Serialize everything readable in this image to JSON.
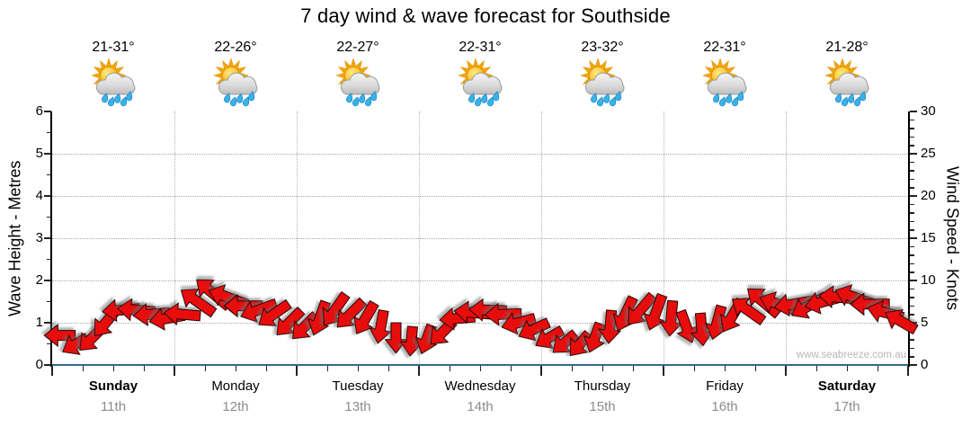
{
  "title": "7 day wind & wave forecast for Southside",
  "watermark": "www.seabreeze.com.au",
  "colors": {
    "arrow_red": "#e80d0d",
    "arrow_outline": "#140000",
    "baseline_blue": "#35688a",
    "grid_gray": "#a6a6a6",
    "date_gray": "#8c8c8c",
    "watermark_gray": "#b8b8b8",
    "tick_black": "#222222"
  },
  "left_axis": {
    "label": "Wave Height - Metres",
    "tick_labels": [
      "6",
      "5",
      "4",
      "3",
      "2",
      "1",
      "0"
    ],
    "range": [
      0,
      6
    ]
  },
  "right_axis": {
    "label": "Wind Speed - Knots",
    "tick_labels": [
      "30",
      "25",
      "20",
      "15",
      "10",
      "5",
      "0"
    ],
    "range": [
      0,
      30
    ]
  },
  "chart_data": {
    "type": "scatter",
    "title": "7 day wind & wave forecast for Southside",
    "x_axis": "7 days, 8 three-hour forecast steps per day",
    "ylabel_left": "Wave Height - Metres",
    "ylabel_right": "Wind Speed - Knots",
    "ylim_left_metres": [
      0,
      6
    ],
    "ylim_right_knots": [
      0,
      30
    ],
    "grid": "dotted horizontal lines at 1-5 m (5-25 kn); dotted vertical lines at day boundaries",
    "legend": "red arrows = wind speed (knots) and wind direction; flat blue line at 0 = wave height (metres)",
    "wave_height_m": 0,
    "points_per_day": 8,
    "days": [
      {
        "name": "Sunday",
        "date": "11th",
        "temps": "21-31°",
        "bold": true
      },
      {
        "name": "Monday",
        "date": "12th",
        "temps": "22-26°",
        "bold": false
      },
      {
        "name": "Tuesday",
        "date": "13th",
        "temps": "22-27°",
        "bold": false
      },
      {
        "name": "Wednesday",
        "date": "14th",
        "temps": "22-31°",
        "bold": false
      },
      {
        "name": "Thursday",
        "date": "15th",
        "temps": "23-32°",
        "bold": false
      },
      {
        "name": "Friday",
        "date": "16th",
        "temps": "22-31°",
        "bold": false
      },
      {
        "name": "Saturday",
        "date": "17th",
        "temps": "21-28°",
        "bold": true
      }
    ],
    "wind_points": [
      {
        "kn": 3.5,
        "dir": 180
      },
      {
        "kn": 2.4,
        "dir": 150
      },
      {
        "kn": 3.0,
        "dir": 135
      },
      {
        "kn": 5.0,
        "dir": 130
      },
      {
        "kn": 6.5,
        "dir": 175
      },
      {
        "kn": 6.5,
        "dir": 185
      },
      {
        "kn": 6.0,
        "dir": 175
      },
      {
        "kn": 5.5,
        "dir": 170
      },
      {
        "kn": 6.0,
        "dir": 185
      },
      {
        "kn": 7.5,
        "dir": 215
      },
      {
        "kn": 8.5,
        "dir": 220
      },
      {
        "kn": 8.0,
        "dir": 200
      },
      {
        "kn": 7.0,
        "dir": 180
      },
      {
        "kn": 6.5,
        "dir": 160
      },
      {
        "kn": 6.0,
        "dir": 145
      },
      {
        "kn": 5.0,
        "dir": 135
      },
      {
        "kn": 4.5,
        "dir": 135
      },
      {
        "kn": 5.5,
        "dir": 110
      },
      {
        "kn": 6.5,
        "dir": 125
      },
      {
        "kn": 6.0,
        "dir": 135
      },
      {
        "kn": 5.5,
        "dir": 120
      },
      {
        "kn": 4.5,
        "dir": 100
      },
      {
        "kn": 3.2,
        "dir": 90
      },
      {
        "kn": 2.8,
        "dir": 95
      },
      {
        "kn": 3.0,
        "dir": 110
      },
      {
        "kn": 3.8,
        "dir": 135
      },
      {
        "kn": 5.5,
        "dir": 175
      },
      {
        "kn": 6.2,
        "dir": 185
      },
      {
        "kn": 6.5,
        "dir": 182
      },
      {
        "kn": 6.0,
        "dir": 178
      },
      {
        "kn": 5.0,
        "dir": 165
      },
      {
        "kn": 4.2,
        "dir": 155
      },
      {
        "kn": 3.2,
        "dir": 150
      },
      {
        "kn": 2.6,
        "dir": 140
      },
      {
        "kn": 2.4,
        "dir": 130
      },
      {
        "kn": 3.2,
        "dir": 110
      },
      {
        "kn": 4.5,
        "dir": 95
      },
      {
        "kn": 6.0,
        "dir": 115
      },
      {
        "kn": 6.5,
        "dir": 130
      },
      {
        "kn": 6.2,
        "dir": 110
      },
      {
        "kn": 5.5,
        "dir": 95
      },
      {
        "kn": 4.5,
        "dir": 70
      },
      {
        "kn": 4.2,
        "dir": 85
      },
      {
        "kn": 5.0,
        "dir": 105
      },
      {
        "kn": 5.8,
        "dir": 120
      },
      {
        "kn": 6.5,
        "dir": 215
      },
      {
        "kn": 7.5,
        "dir": 220
      },
      {
        "kn": 7.2,
        "dir": 200
      },
      {
        "kn": 7.2,
        "dir": 170
      },
      {
        "kn": 7.0,
        "dir": 150
      },
      {
        "kn": 7.5,
        "dir": 165
      },
      {
        "kn": 8.0,
        "dir": 185
      },
      {
        "kn": 8.0,
        "dir": 200
      },
      {
        "kn": 7.2,
        "dir": 180
      },
      {
        "kn": 6.2,
        "dir": 195
      },
      {
        "kn": 5.2,
        "dir": 210
      }
    ]
  }
}
